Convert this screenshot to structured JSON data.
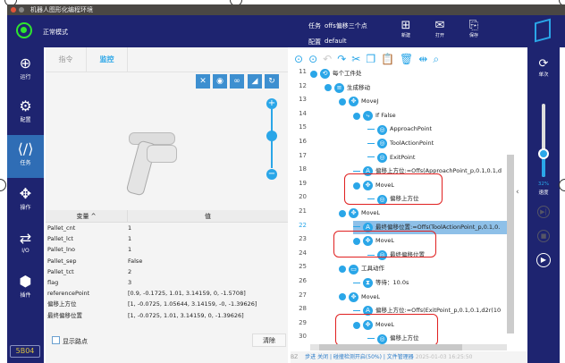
{
  "window": {
    "title": "机器人图形化编程环境"
  },
  "header": {
    "mode": "正常模式",
    "task_label": "任务",
    "task_value": "offs偏移三个点",
    "config_label": "配置",
    "config_value": "default",
    "new_label": "新建",
    "open_label": "打开",
    "save_label": "保存",
    "accent": "#1e2470"
  },
  "sidebar": {
    "items": [
      {
        "label": "运行",
        "icon": "run-icon"
      },
      {
        "label": "配置",
        "icon": "gear-icon"
      },
      {
        "label": "任务",
        "icon": "code-icon"
      },
      {
        "label": "操作",
        "icon": "move-icon"
      },
      {
        "label": "I/O",
        "icon": "io-icon"
      },
      {
        "label": "插件",
        "icon": "cube-icon"
      }
    ],
    "version": "5B04"
  },
  "left": {
    "tabs": [
      "指令",
      "监控"
    ],
    "active_tab": "监控",
    "table": {
      "headers": [
        "变量 ^",
        "值"
      ],
      "rows": [
        [
          "Pallet_cnt",
          "1"
        ],
        [
          "Pallet_lct",
          "1"
        ],
        [
          "Pallet_lno",
          "1"
        ],
        [
          "Pallet_sep",
          "False"
        ],
        [
          "Pallet_tct",
          "2"
        ],
        [
          "flag",
          "3"
        ],
        [
          "referencePoint",
          "[0.9, -0.1725, 1.01, 3.14159, 0, -1.5708]"
        ],
        [
          "偏移上方位",
          "[1, -0.0725, 1.05644, 3.14159, -0, -1.39626]"
        ],
        [
          "最终偏移位置",
          "[1, -0.0725, 1.01, 3.14159, 0, -1.39626]"
        ]
      ]
    },
    "show_waypoints": "显示路点",
    "clear": "清除"
  },
  "editor": {
    "lines": [
      {
        "n": "11",
        "d": 0,
        "text": "每个工件处",
        "icon": "loop-icon"
      },
      {
        "n": "12",
        "d": 1,
        "text": "生成移动",
        "icon": "list-icon"
      },
      {
        "n": "13",
        "d": 2,
        "text": "MoveJ",
        "icon": "move-icon"
      },
      {
        "n": "14",
        "d": 3,
        "text": "If  False",
        "icon": "if-icon"
      },
      {
        "n": "15",
        "d": 4,
        "text": "ApproachPoint",
        "icon": "waypoint-icon"
      },
      {
        "n": "16",
        "d": 4,
        "text": "ToolActionPoint",
        "icon": "waypoint-icon"
      },
      {
        "n": "17",
        "d": 4,
        "text": "ExitPoint",
        "icon": "waypoint-icon"
      },
      {
        "n": "18",
        "d": 3,
        "text": "偏移上方位:=Offs(ApproachPoint_p,0.1,0.1,d",
        "icon": "assign-icon"
      },
      {
        "n": "19",
        "d": 3,
        "text": "MoveL",
        "icon": "move-icon"
      },
      {
        "n": "20",
        "d": 4,
        "text": "偏移上方位",
        "icon": "waypoint-icon"
      },
      {
        "n": "21",
        "d": 2,
        "text": "MoveL",
        "icon": "move-icon"
      },
      {
        "n": "22",
        "d": 3,
        "text": "最终偏移位置:=Offs(ToolActionPoint_p,0.1,0.",
        "icon": "assign-icon",
        "hl": true
      },
      {
        "n": "23",
        "d": 3,
        "text": "MoveL",
        "icon": "move-icon"
      },
      {
        "n": "24",
        "d": 4,
        "text": "最终偏移位置",
        "icon": "waypoint-icon"
      },
      {
        "n": "25",
        "d": 2,
        "text": "工具动作",
        "icon": "folder-icon"
      },
      {
        "n": "26",
        "d": 3,
        "text": "等待：10.0s",
        "icon": "hourglass-icon"
      },
      {
        "n": "27",
        "d": 2,
        "text": "MoveL",
        "icon": "move-icon"
      },
      {
        "n": "28",
        "d": 3,
        "text": "偏移上方位:=Offs(ExitPoint_p,0.1,0.1,d2r(10",
        "icon": "assign-icon"
      },
      {
        "n": "29",
        "d": 3,
        "text": "MoveL",
        "icon": "move-icon"
      },
      {
        "n": "30",
        "d": 4,
        "text": "偏移上方位",
        "icon": "waypoint-icon"
      }
    ]
  },
  "right": {
    "mode": "单次",
    "speed_percent": 32,
    "speed_text": "32%",
    "speed_label": "速度"
  },
  "status": {
    "bz": "BZ",
    "step": "步进 关闭",
    "collision": "碰撞检测开启(50%)",
    "files": "文件管理器",
    "datetime": "2025-01-03 16:25:50"
  }
}
